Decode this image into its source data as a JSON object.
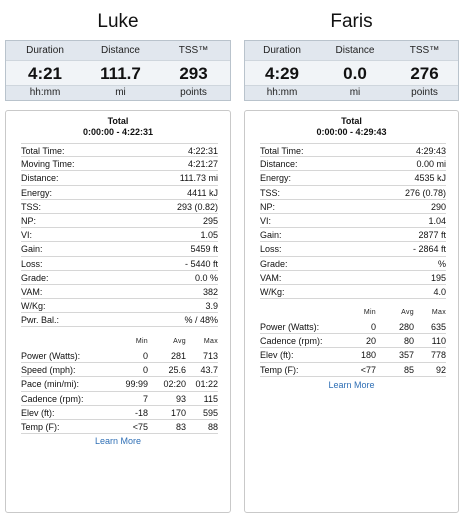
{
  "learn_more": "Learn More",
  "metric_headers": [
    "Min",
    "Avg",
    "Max"
  ],
  "athletes": [
    {
      "name": "Luke",
      "summary": [
        {
          "label": "Duration",
          "value": "4:21",
          "unit": "hh:mm"
        },
        {
          "label": "Distance",
          "value": "111.7",
          "unit": "mi"
        },
        {
          "label": "TSS™",
          "value": "293",
          "unit": "points"
        }
      ],
      "panel_title": "Total",
      "panel_range": "0:00:00 - 4:22:31",
      "stats": [
        {
          "label": "Total Time:",
          "value": "4:22:31"
        },
        {
          "label": "Moving Time:",
          "value": "4:21:27"
        },
        {
          "label": "Distance:",
          "value": "111.73 mi"
        },
        {
          "label": "Energy:",
          "value": "4411 kJ"
        },
        {
          "label": "TSS:",
          "value": "293 (0.82)"
        },
        {
          "label": "NP:",
          "value": "295"
        },
        {
          "label": "VI:",
          "value": "1.05"
        },
        {
          "label": "Gain:",
          "value": "5459 ft"
        },
        {
          "label": "Loss:",
          "value": "- 5440 ft"
        },
        {
          "label": "Grade:",
          "value": "0.0 %"
        },
        {
          "label": "VAM:",
          "value": "382"
        },
        {
          "label": "W/Kg:",
          "value": "3.9"
        },
        {
          "label": "Pwr. Bal.:",
          "value": "% / 48%"
        }
      ],
      "metrics": [
        {
          "label": "Power (Watts):",
          "min": "0",
          "avg": "281",
          "max": "713"
        },
        {
          "label": "Speed (mph):",
          "min": "0",
          "avg": "25.6",
          "max": "43.7"
        },
        {
          "label": "Pace (min/mi):",
          "min": "99:99",
          "avg": "02:20",
          "max": "01:22"
        },
        {
          "label": "Cadence (rpm):",
          "min": "7",
          "avg": "93",
          "max": "115"
        },
        {
          "label": "Elev (ft):",
          "min": "-18",
          "avg": "170",
          "max": "595"
        },
        {
          "label": "Temp (F):",
          "min": "<75",
          "avg": "83",
          "max": "88"
        }
      ]
    },
    {
      "name": "Faris",
      "summary": [
        {
          "label": "Duration",
          "value": "4:29",
          "unit": "hh:mm"
        },
        {
          "label": "Distance",
          "value": "0.0",
          "unit": "mi"
        },
        {
          "label": "TSS™",
          "value": "276",
          "unit": "points"
        }
      ],
      "panel_title": "Total",
      "panel_range": "0:00:00 - 4:29:43",
      "stats": [
        {
          "label": "Total Time:",
          "value": "4:29:43"
        },
        {
          "label": "Distance:",
          "value": "0.00 mi"
        },
        {
          "label": "Energy:",
          "value": "4535 kJ"
        },
        {
          "label": "TSS:",
          "value": "276 (0.78)"
        },
        {
          "label": "NP:",
          "value": "290"
        },
        {
          "label": "VI:",
          "value": "1.04"
        },
        {
          "label": "Gain:",
          "value": "2877 ft"
        },
        {
          "label": "Loss:",
          "value": "- 2864 ft"
        },
        {
          "label": "Grade:",
          "value": "%"
        },
        {
          "label": "VAM:",
          "value": "195"
        },
        {
          "label": "W/Kg:",
          "value": "4.0"
        }
      ],
      "metrics": [
        {
          "label": "Power (Watts):",
          "min": "0",
          "avg": "280",
          "max": "635"
        },
        {
          "label": "Cadence (rpm):",
          "min": "20",
          "avg": "80",
          "max": "110"
        },
        {
          "label": "Elev (ft):",
          "min": "180",
          "avg": "357",
          "max": "778"
        },
        {
          "label": "Temp (F):",
          "min": "<77",
          "avg": "85",
          "max": "92"
        }
      ]
    }
  ]
}
